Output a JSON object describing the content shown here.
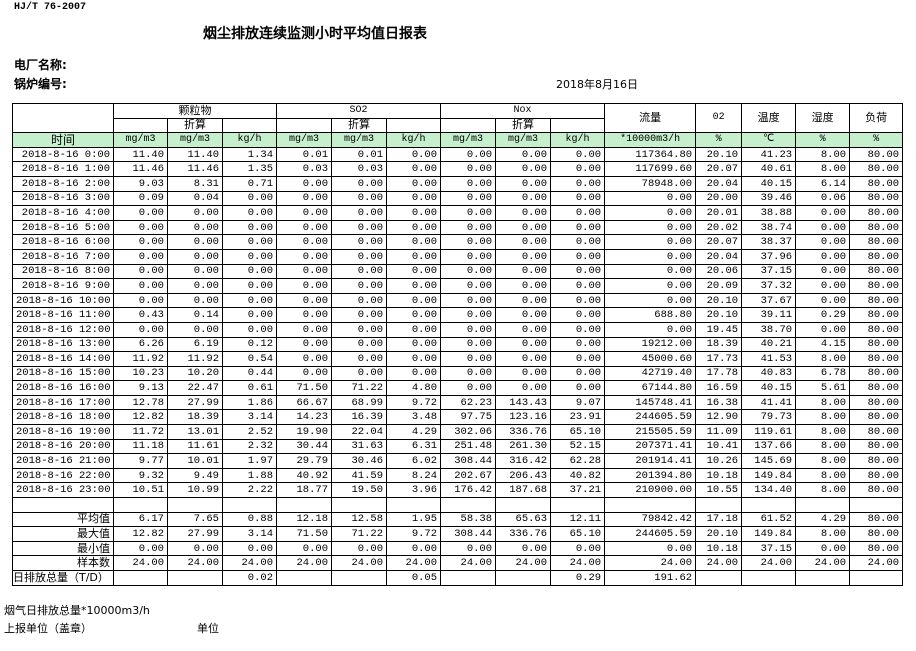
{
  "standard": "HJ/T  76-2007",
  "title": "烟尘排放连续监测小时平均值日报表",
  "plant_label": "电厂名称:",
  "boiler_label": "锅炉编号:",
  "report_date": "2018年8月16日",
  "header": {
    "time": "时间",
    "particulate": "颗粒物",
    "so2": "SO2",
    "nox": "Nox",
    "converted": "折算",
    "flow": "流量",
    "o2": "02",
    "temperature": "温度",
    "humidity": "湿度",
    "load": "负荷",
    "units": [
      "mg/m3",
      "mg/m3",
      "kg/h",
      "mg/m3",
      "mg/m3",
      "kg/h",
      "mg/m3",
      "mg/m3",
      "kg/h",
      "*10000m3/h",
      "%",
      "℃",
      "%",
      "%"
    ]
  },
  "rows": [
    [
      "2018-8-16 0:00",
      "11.40",
      "11.40",
      "1.34",
      "0.01",
      "0.01",
      "0.00",
      "0.00",
      "0.00",
      "0.00",
      "117364.80",
      "20.10",
      "41.23",
      "8.00",
      "80.00"
    ],
    [
      "2018-8-16 1:00",
      "11.46",
      "11.46",
      "1.35",
      "0.03",
      "0.03",
      "0.00",
      "0.00",
      "0.00",
      "0.00",
      "117699.60",
      "20.07",
      "40.61",
      "8.00",
      "80.00"
    ],
    [
      "2018-8-16 2:00",
      "9.03",
      "8.31",
      "0.71",
      "0.00",
      "0.00",
      "0.00",
      "0.00",
      "0.00",
      "0.00",
      "78948.00",
      "20.04",
      "40.15",
      "6.14",
      "80.00"
    ],
    [
      "2018-8-16 3:00",
      "0.09",
      "0.04",
      "0.00",
      "0.00",
      "0.00",
      "0.00",
      "0.00",
      "0.00",
      "0.00",
      "0.00",
      "20.00",
      "39.46",
      "0.06",
      "80.00"
    ],
    [
      "2018-8-16 4:00",
      "0.00",
      "0.00",
      "0.00",
      "0.00",
      "0.00",
      "0.00",
      "0.00",
      "0.00",
      "0.00",
      "0.00",
      "20.01",
      "38.88",
      "0.00",
      "80.00"
    ],
    [
      "2018-8-16 5:00",
      "0.00",
      "0.00",
      "0.00",
      "0.00",
      "0.00",
      "0.00",
      "0.00",
      "0.00",
      "0.00",
      "0.00",
      "20.02",
      "38.74",
      "0.00",
      "80.00"
    ],
    [
      "2018-8-16 6:00",
      "0.00",
      "0.00",
      "0.00",
      "0.00",
      "0.00",
      "0.00",
      "0.00",
      "0.00",
      "0.00",
      "0.00",
      "20.07",
      "38.37",
      "0.00",
      "80.00"
    ],
    [
      "2018-8-16 7:00",
      "0.00",
      "0.00",
      "0.00",
      "0.00",
      "0.00",
      "0.00",
      "0.00",
      "0.00",
      "0.00",
      "0.00",
      "20.04",
      "37.96",
      "0.00",
      "80.00"
    ],
    [
      "2018-8-16 8:00",
      "0.00",
      "0.00",
      "0.00",
      "0.00",
      "0.00",
      "0.00",
      "0.00",
      "0.00",
      "0.00",
      "0.00",
      "20.06",
      "37.15",
      "0.00",
      "80.00"
    ],
    [
      "2018-8-16 9:00",
      "0.00",
      "0.00",
      "0.00",
      "0.00",
      "0.00",
      "0.00",
      "0.00",
      "0.00",
      "0.00",
      "0.00",
      "20.09",
      "37.32",
      "0.00",
      "80.00"
    ],
    [
      "2018-8-16 10:00",
      "0.00",
      "0.00",
      "0.00",
      "0.00",
      "0.00",
      "0.00",
      "0.00",
      "0.00",
      "0.00",
      "0.00",
      "20.10",
      "37.67",
      "0.00",
      "80.00"
    ],
    [
      "2018-8-16 11:00",
      "0.43",
      "0.14",
      "0.00",
      "0.00",
      "0.00",
      "0.00",
      "0.00",
      "0.00",
      "0.00",
      "688.80",
      "20.10",
      "39.11",
      "0.29",
      "80.00"
    ],
    [
      "2018-8-16 12:00",
      "0.00",
      "0.00",
      "0.00",
      "0.00",
      "0.00",
      "0.00",
      "0.00",
      "0.00",
      "0.00",
      "0.00",
      "19.45",
      "38.70",
      "0.00",
      "80.00"
    ],
    [
      "2018-8-16 13:00",
      "6.26",
      "6.19",
      "0.12",
      "0.00",
      "0.00",
      "0.00",
      "0.00",
      "0.00",
      "0.00",
      "19212.00",
      "18.39",
      "40.21",
      "4.15",
      "80.00"
    ],
    [
      "2018-8-16 14:00",
      "11.92",
      "11.92",
      "0.54",
      "0.00",
      "0.00",
      "0.00",
      "0.00",
      "0.00",
      "0.00",
      "45000.60",
      "17.73",
      "41.53",
      "8.00",
      "80.00"
    ],
    [
      "2018-8-16 15:00",
      "10.23",
      "10.20",
      "0.44",
      "0.00",
      "0.00",
      "0.00",
      "0.00",
      "0.00",
      "0.00",
      "42719.40",
      "17.78",
      "40.83",
      "6.78",
      "80.00"
    ],
    [
      "2018-8-16 16:00",
      "9.13",
      "22.47",
      "0.61",
      "71.50",
      "71.22",
      "4.80",
      "0.00",
      "0.00",
      "0.00",
      "67144.80",
      "16.59",
      "40.15",
      "5.61",
      "80.00"
    ],
    [
      "2018-8-16 17:00",
      "12.78",
      "27.99",
      "1.86",
      "66.67",
      "68.99",
      "9.72",
      "62.23",
      "143.43",
      "9.07",
      "145748.41",
      "16.38",
      "41.41",
      "8.00",
      "80.00"
    ],
    [
      "2018-8-16 18:00",
      "12.82",
      "18.39",
      "3.14",
      "14.23",
      "16.39",
      "3.48",
      "97.75",
      "123.16",
      "23.91",
      "244605.59",
      "12.90",
      "79.73",
      "8.00",
      "80.00"
    ],
    [
      "2018-8-16 19:00",
      "11.72",
      "13.01",
      "2.52",
      "19.90",
      "22.04",
      "4.29",
      "302.06",
      "336.76",
      "65.10",
      "215505.59",
      "11.09",
      "119.61",
      "8.00",
      "80.00"
    ],
    [
      "2018-8-16 20:00",
      "11.18",
      "11.61",
      "2.32",
      "30.44",
      "31.63",
      "6.31",
      "251.48",
      "261.30",
      "52.15",
      "207371.41",
      "10.41",
      "137.66",
      "8.00",
      "80.00"
    ],
    [
      "2018-8-16 21:00",
      "9.77",
      "10.01",
      "1.97",
      "29.79",
      "30.46",
      "6.02",
      "308.44",
      "316.42",
      "62.28",
      "201914.41",
      "10.26",
      "145.69",
      "8.00",
      "80.00"
    ],
    [
      "2018-8-16 22:00",
      "9.32",
      "9.49",
      "1.88",
      "40.92",
      "41.59",
      "8.24",
      "202.67",
      "206.43",
      "40.82",
      "201394.80",
      "10.18",
      "149.84",
      "8.00",
      "80.00"
    ],
    [
      "2018-8-16 23:00",
      "10.51",
      "10.99",
      "2.22",
      "18.77",
      "19.50",
      "3.96",
      "176.42",
      "187.68",
      "37.21",
      "210900.00",
      "10.55",
      "134.40",
      "8.00",
      "80.00"
    ]
  ],
  "summary": [
    [
      "平均值",
      "6.17",
      "7.65",
      "0.88",
      "12.18",
      "12.58",
      "1.95",
      "58.38",
      "65.63",
      "12.11",
      "79842.42",
      "17.18",
      "61.52",
      "4.29",
      "80.00"
    ],
    [
      "最大值",
      "12.82",
      "27.99",
      "3.14",
      "71.50",
      "71.22",
      "9.72",
      "308.44",
      "336.76",
      "65.10",
      "244605.59",
      "20.10",
      "149.84",
      "8.00",
      "80.00"
    ],
    [
      "最小值",
      "0.00",
      "0.00",
      "0.00",
      "0.00",
      "0.00",
      "0.00",
      "0.00",
      "0.00",
      "0.00",
      "0.00",
      "10.18",
      "37.15",
      "0.00",
      "80.00"
    ],
    [
      "样本数",
      "24.00",
      "24.00",
      "24.00",
      "24.00",
      "24.00",
      "24.00",
      "24.00",
      "24.00",
      "24.00",
      "24.00",
      "24.00",
      "24.00",
      "24.00",
      "24.00"
    ]
  ],
  "daily_total": [
    "日排放总量（T/D）",
    "",
    "",
    "0.02",
    "",
    "",
    "0.05",
    "",
    "",
    "0.29",
    "191.62",
    "",
    "",
    "",
    ""
  ],
  "footer": {
    "flue_gas_total": "烟气日排放总量*10000m3/h",
    "reporting_unit": "上报单位（盖章）",
    "unit": "单位"
  },
  "colors": {
    "unit_row_bg": "#c6efce"
  }
}
